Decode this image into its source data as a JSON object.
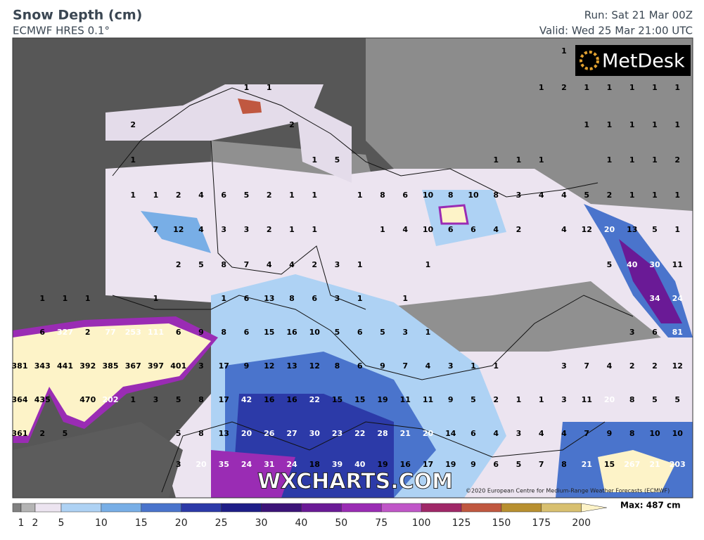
{
  "header": {
    "title": "Snow Depth (cm)",
    "subtitle": "ECMWF HRES 0.1°",
    "run": "Run: Sat 21 Mar 00Z",
    "valid": "Valid: Wed 25 Mar 21:00 UTC"
  },
  "logo": "MetDesk",
  "map": {
    "rows": [
      [
        null,
        null,
        null,
        null,
        null,
        null,
        null,
        null,
        null,
        null,
        null,
        null,
        null,
        null,
        null,
        null,
        null,
        null,
        null,
        null,
        null,
        null,
        null,
        null,
        1,
        null,
        null,
        null,
        null,
        null
      ],
      [
        null,
        null,
        null,
        null,
        null,
        null,
        null,
        null,
        null,
        null,
        1,
        1,
        null,
        null,
        null,
        null,
        null,
        null,
        null,
        null,
        null,
        null,
        null,
        1,
        2,
        1,
        1,
        1,
        1,
        1
      ],
      [
        null,
        null,
        null,
        null,
        null,
        2,
        null,
        null,
        null,
        null,
        null,
        null,
        2,
        null,
        null,
        null,
        null,
        null,
        null,
        null,
        null,
        null,
        null,
        null,
        null,
        1,
        1,
        1,
        1,
        1
      ],
      [
        null,
        null,
        null,
        null,
        null,
        1,
        null,
        null,
        null,
        null,
        null,
        null,
        null,
        1,
        5,
        null,
        null,
        null,
        null,
        null,
        null,
        1,
        1,
        1,
        null,
        null,
        1,
        1,
        1,
        2
      ],
      [
        null,
        null,
        null,
        null,
        null,
        1,
        1,
        2,
        4,
        6,
        5,
        2,
        1,
        1,
        null,
        1,
        8,
        6,
        10,
        8,
        10,
        8,
        3,
        4,
        4,
        5,
        2,
        1,
        1,
        1
      ],
      [
        null,
        null,
        null,
        null,
        null,
        null,
        7,
        12,
        4,
        3,
        3,
        2,
        1,
        1,
        null,
        null,
        1,
        4,
        10,
        6,
        6,
        4,
        2,
        null,
        4,
        12,
        20,
        13,
        5,
        1
      ],
      [
        null,
        null,
        null,
        null,
        null,
        null,
        null,
        2,
        5,
        8,
        7,
        4,
        4,
        2,
        3,
        1,
        null,
        null,
        1,
        null,
        null,
        null,
        null,
        null,
        null,
        null,
        5,
        40,
        30,
        11
      ],
      [
        null,
        1,
        1,
        1,
        null,
        null,
        1,
        null,
        null,
        1,
        6,
        13,
        8,
        6,
        3,
        1,
        null,
        1,
        null,
        null,
        null,
        null,
        null,
        null,
        null,
        null,
        null,
        null,
        34,
        24
      ],
      [
        null,
        6,
        327,
        2,
        77,
        253,
        111,
        6,
        9,
        8,
        6,
        15,
        16,
        10,
        5,
        6,
        5,
        3,
        1,
        null,
        null,
        null,
        null,
        null,
        null,
        null,
        null,
        3,
        6,
        81
      ],
      [
        381,
        343,
        441,
        392,
        385,
        367,
        397,
        401,
        3,
        17,
        9,
        12,
        13,
        12,
        8,
        6,
        9,
        7,
        4,
        3,
        1,
        1,
        null,
        null,
        3,
        7,
        4,
        2,
        2,
        12
      ],
      [
        364,
        435,
        null,
        470,
        202,
        1,
        3,
        5,
        8,
        17,
        42,
        16,
        16,
        22,
        15,
        15,
        19,
        11,
        11,
        9,
        5,
        2,
        1,
        1,
        3,
        11,
        20,
        8,
        5,
        5
      ],
      [
        361,
        2,
        5,
        null,
        null,
        null,
        null,
        5,
        8,
        13,
        20,
        26,
        27,
        30,
        23,
        22,
        28,
        21,
        20,
        14,
        6,
        4,
        3,
        4,
        4,
        7,
        9,
        8,
        10,
        10
      ],
      [
        null,
        null,
        null,
        null,
        null,
        null,
        null,
        3,
        20,
        35,
        24,
        31,
        24,
        18,
        39,
        40,
        19,
        16,
        17,
        19,
        9,
        6,
        5,
        7,
        8,
        21,
        15,
        267,
        21,
        203
      ]
    ]
  },
  "watermark": "WXCHARTS.COM",
  "credit": "©2020 European Centre for Medium-Range Weather Forecasts (ECMWF)",
  "legend": {
    "labels": [
      1,
      2,
      5,
      10,
      15,
      20,
      25,
      30,
      40,
      50,
      75,
      100,
      125,
      150,
      175,
      200
    ],
    "colors": [
      "#808080",
      "#b4b4b4",
      "#ece4f0",
      "#aed2f4",
      "#78aee6",
      "#4a74cc",
      "#2c3aa8",
      "#1e1e88",
      "#3c1478",
      "#6a1a96",
      "#9a2cb4",
      "#c056c8",
      "#a02868",
      "#c05840",
      "#b89030",
      "#d8c070",
      "#fdf3c8"
    ],
    "max": "Max: 487 cm"
  }
}
